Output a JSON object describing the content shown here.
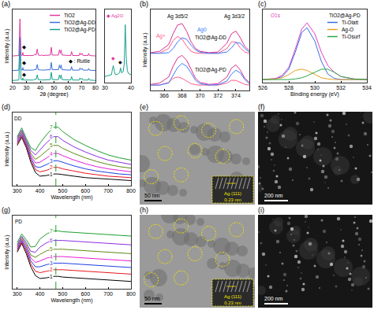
{
  "chart_data": [
    {
      "panel": "(a)",
      "type": "line",
      "x_label": "2θ (degree)",
      "y_label": "Intensity (a.u.)",
      "xlim": [
        20,
        80
      ],
      "xticks": [
        20,
        30,
        40,
        50,
        60,
        70,
        80
      ],
      "ylim": [
        0,
        170
      ],
      "tick_labels": "x",
      "legend": "top right",
      "x": [
        20,
        24.5,
        25.3,
        26.1,
        27,
        27.4,
        27.8,
        35,
        36,
        37,
        37.8,
        38.6,
        40.5,
        41,
        41.5,
        47.3,
        48,
        48.7,
        53.2,
        53.9,
        54.6,
        55.1,
        55.8,
        62,
        62.7,
        63.4,
        68.2,
        68.8,
        69.4,
        70.3,
        71,
        74.6,
        75.1,
        75.6,
        80
      ],
      "series": [
        {
          "name": "TiO2",
          "color": "#e0389e",
          "values": [
            62,
            63,
            148,
            64,
            63,
            70,
            63,
            63,
            66,
            64,
            78,
            64,
            63,
            65,
            63,
            64,
            82,
            64,
            64,
            76,
            68,
            76,
            64,
            63,
            72,
            63,
            63,
            69,
            64,
            68,
            63,
            63,
            68,
            63,
            62
          ]
        },
        {
          "name": "TiO2@Ag-DD",
          "color": "#3b6fd6",
          "values": [
            28,
            29,
            105,
            30,
            29,
            35,
            29,
            29,
            31,
            30,
            42,
            30,
            29,
            30,
            29,
            30,
            47,
            30,
            30,
            41,
            33,
            41,
            30,
            29,
            37,
            29,
            29,
            34,
            30,
            33,
            29,
            29,
            33,
            29,
            28
          ]
        },
        {
          "name": "TiO2@Ag-PD",
          "color": "#17a28e",
          "values": [
            5,
            6,
            72,
            7,
            6,
            11,
            6,
            6,
            8,
            7,
            18,
            7,
            6,
            7,
            6,
            7,
            24,
            7,
            7,
            18,
            10,
            18,
            7,
            6,
            14,
            6,
            6,
            11,
            7,
            10,
            6,
            6,
            10,
            6,
            5
          ]
        }
      ],
      "annotations": [
        {
          "text": "◆",
          "x": 28.2,
          "y": 84
        },
        {
          "text": "◆",
          "x": 28.2,
          "y": 47
        },
        {
          "text": "◆",
          "x": 28.2,
          "y": 20
        },
        {
          "text": "◆ : Rutile",
          "x": 68.5,
          "y": 50
        }
      ],
      "inset": {
        "type": "line",
        "xlim": [
          30,
          40
        ],
        "xticks": [
          30,
          40
        ],
        "ylim": [
          0,
          120
        ],
        "x": [
          30,
          31,
          32,
          32.5,
          32.8,
          33.2,
          33.6,
          34,
          35,
          35.6,
          36,
          36.4,
          37,
          37.4,
          37.8,
          38.2,
          38.6,
          39,
          40
        ],
        "series": [
          {
            "color": "#17a28e",
            "values": [
              10,
              11,
              12,
              13,
              20,
              28,
              19,
              13,
              14,
              16,
              24,
              16,
              18,
              30,
              95,
              40,
              20,
              15,
              13
            ]
          }
        ],
        "annotations": [
          {
            "text": "◆ Ag2O",
            "x": 34,
            "y": 110,
            "color": "#e0389e"
          },
          {
            "text": "◆",
            "x": 33.2,
            "y": 40,
            "color": "#e0389e"
          },
          {
            "text": "◆",
            "x": 36,
            "y": 34
          }
        ]
      }
    },
    {
      "panel": "(b)",
      "type": "line",
      "y_label": "Intensity (a.u.)",
      "xlim": [
        364.5,
        375.5
      ],
      "xticks": [
        366,
        368,
        370,
        372,
        374
      ],
      "ylim": [
        0,
        120
      ],
      "tick_labels": "x",
      "x": [
        364.5,
        365.5,
        366.5,
        367,
        367.5,
        368,
        368.5,
        369,
        369.5,
        370,
        371,
        372,
        373,
        373.5,
        374,
        374.5,
        375,
        375.5
      ],
      "series": [
        {
          "color": "#d8308f",
          "values": [
            56,
            58,
            68,
            84,
            97,
            99,
            88,
            72,
            62,
            58,
            56,
            57,
            70,
            84,
            88,
            78,
            65,
            59
          ]
        },
        {
          "color": "#ff5c8a",
          "values": [
            55,
            55.5,
            62,
            74,
            80,
            76,
            66,
            58,
            55.5,
            55,
            55,
            55,
            62,
            72,
            72,
            63,
            57,
            55
          ]
        },
        {
          "color": "#3a7bff",
          "values": [
            55,
            55,
            56,
            62,
            72,
            78,
            76,
            67,
            60,
            56.5,
            55,
            55,
            57,
            63,
            71,
            70,
            62,
            57
          ]
        },
        {
          "color": "#d8308f",
          "values": [
            9,
            11,
            20,
            36,
            48,
            52,
            45,
            32,
            18,
            12,
            9,
            10,
            20,
            33,
            38,
            30,
            18,
            12
          ]
        },
        {
          "color": "#ff5c8a",
          "values": [
            8,
            8,
            12,
            18,
            20,
            18,
            14,
            10,
            8.5,
            8,
            8,
            8,
            11,
            15,
            15,
            12,
            9,
            8
          ]
        },
        {
          "color": "#3a7bff",
          "values": [
            8,
            8,
            11,
            22,
            34,
            40,
            36,
            26,
            15,
            10,
            8,
            8.5,
            14,
            24,
            30,
            26,
            16,
            10
          ]
        }
      ],
      "annotations": [
        {
          "text": "Ag 3d5/2",
          "x": 367.5,
          "y": 110
        },
        {
          "text": "Ag 3d3/2",
          "x": 373.8,
          "y": 110
        },
        {
          "text": "Ag+",
          "x": 365.6,
          "y": 80,
          "color": "#ff5c8a"
        },
        {
          "text": "Ag0",
          "x": 370.2,
          "y": 90,
          "color": "#3a7bff"
        },
        {
          "text": "TiO2@Ag-DD",
          "x": 371.2,
          "y": 78
        },
        {
          "text": "TiO2@Ag-PD",
          "x": 371.2,
          "y": 30
        }
      ]
    },
    {
      "panel": "(c)",
      "type": "line",
      "x_label": "Binding energy (eV)",
      "xlim": [
        526,
        534
      ],
      "xticks": [
        526,
        528,
        530,
        532,
        534
      ],
      "ylim": [
        0,
        120
      ],
      "tick_labels": "x",
      "legend": "top right",
      "legend_title": "TiO2@Ag-PD",
      "x": [
        526,
        527,
        527.5,
        528,
        528.5,
        529,
        529.4,
        530,
        530.5,
        531,
        531.5,
        532,
        533,
        534
      ],
      "series": [
        {
          "color": "#e040c0",
          "values": [
            5,
            7,
            12,
            25,
            55,
            88,
            98,
            80,
            50,
            28,
            17,
            10,
            6,
            5
          ]
        },
        {
          "name": "Ti-Olatt",
          "color": "#3a6fe0",
          "values": [
            5,
            6,
            10,
            22,
            50,
            82,
            90,
            68,
            35,
            14,
            7,
            5,
            5,
            5
          ]
        },
        {
          "name": "Ag-O",
          "color": "#e8a020",
          "values": [
            5,
            6,
            8,
            13,
            20,
            22,
            20,
            13,
            8,
            6,
            5,
            5,
            5,
            5
          ]
        },
        {
          "name": "Ti-Osurf",
          "color": "#2aa84a",
          "values": [
            5,
            5,
            5,
            5,
            6,
            8,
            11,
            17,
            22,
            22,
            17,
            10,
            6,
            5
          ]
        }
      ],
      "annotations": [
        {
          "text": "O1s",
          "x": 527,
          "y": 110,
          "color": "#e040c0"
        }
      ]
    },
    {
      "panel": "(d)",
      "type": "line",
      "x_label": "Wavelength (nm)",
      "y_label": "Intensity (a.u.)",
      "xlim": [
        280,
        800
      ],
      "xticks": [
        300,
        400,
        500,
        600,
        700,
        800
      ],
      "ylim": [
        0,
        100
      ],
      "tick_labels": "x",
      "vline": 470,
      "x": [
        300,
        320,
        340,
        360,
        380,
        400,
        430,
        460,
        480,
        500,
        550,
        600,
        650,
        700,
        750,
        800
      ],
      "series": [
        {
          "name": "1",
          "color": "#000000",
          "values": [
            55,
            66,
            52,
            32,
            18,
            13,
            14,
            16,
            16,
            15,
            13,
            11,
            10,
            9,
            8,
            7
          ]
        },
        {
          "name": "2",
          "color": "#e8161e",
          "values": [
            57,
            68,
            54,
            35,
            22,
            19,
            21,
            25,
            25,
            23,
            20,
            17,
            15,
            13,
            12,
            11
          ]
        },
        {
          "name": "3",
          "color": "#1e3fe0",
          "values": [
            59,
            70,
            56,
            38,
            26,
            25,
            29,
            34,
            34,
            32,
            27,
            23,
            20,
            18,
            16,
            15
          ]
        },
        {
          "name": "4",
          "color": "#e61fd6",
          "values": [
            61,
            72,
            58,
            41,
            31,
            32,
            38,
            44,
            44,
            41,
            35,
            30,
            26,
            23,
            21,
            19
          ]
        },
        {
          "name": "5",
          "color": "#5d8a0e",
          "values": [
            63,
            74,
            60,
            44,
            36,
            40,
            48,
            55,
            55,
            51,
            44,
            38,
            33,
            29,
            26,
            24
          ]
        },
        {
          "name": "6",
          "color": "#8b2be2",
          "values": [
            65,
            76,
            62,
            48,
            42,
            49,
            59,
            67,
            67,
            62,
            53,
            46,
            40,
            35,
            32,
            29
          ]
        },
        {
          "name": "7",
          "color": "#1f9e2f",
          "values": [
            67,
            79,
            65,
            52,
            48,
            58,
            70,
            80,
            80,
            74,
            63,
            55,
            48,
            42,
            38,
            35
          ]
        }
      ],
      "annotations": [
        {
          "text": "DD",
          "x": 305,
          "y": 92
        }
      ]
    },
    {
      "panel": "(g)",
      "type": "line",
      "x_label": "Wavelength (nm)",
      "y_label": "Intensity (a.u.)",
      "xlim": [
        280,
        800
      ],
      "xticks": [
        300,
        400,
        500,
        600,
        700,
        800
      ],
      "ylim": [
        0,
        100
      ],
      "tick_labels": "x",
      "vline": 470,
      "x": [
        300,
        320,
        340,
        360,
        380,
        400,
        430,
        460,
        480,
        500,
        550,
        600,
        650,
        700,
        750,
        800
      ],
      "series": [
        {
          "name": "1",
          "color": "#000000",
          "values": [
            50,
            62,
            48,
            30,
            18,
            14,
            15,
            17,
            17,
            16,
            15,
            14,
            13,
            12,
            11,
            10
          ]
        },
        {
          "name": "2",
          "color": "#e8161e",
          "values": [
            52,
            64,
            51,
            34,
            24,
            22,
            24,
            26,
            26,
            26,
            25,
            24,
            23,
            22,
            21,
            20
          ]
        },
        {
          "name": "3",
          "color": "#1e3fe0",
          "values": [
            54,
            66,
            54,
            38,
            30,
            30,
            33,
            35,
            35,
            35,
            34,
            33,
            32,
            31,
            30,
            29
          ]
        },
        {
          "name": "4",
          "color": "#e61fd6",
          "values": [
            56,
            68,
            57,
            42,
            36,
            38,
            42,
            44,
            44,
            44,
            43,
            42,
            41,
            40,
            39,
            38
          ]
        },
        {
          "name": "5",
          "color": "#5d8a0e",
          "values": [
            58,
            70,
            60,
            46,
            43,
            47,
            52,
            54,
            54,
            54,
            53,
            52,
            51,
            50,
            49,
            48
          ]
        },
        {
          "name": "6",
          "color": "#8b2be2",
          "values": [
            60,
            72,
            63,
            51,
            50,
            57,
            63,
            66,
            66,
            66,
            65,
            64,
            63,
            62,
            61,
            60
          ]
        },
        {
          "name": "7",
          "color": "#1f9e2f",
          "values": [
            63,
            75,
            67,
            57,
            58,
            68,
            75,
            79,
            79,
            78,
            77,
            76,
            75,
            74,
            73,
            72
          ]
        }
      ],
      "annotations": [
        {
          "text": "PD",
          "x": 305,
          "y": 92
        }
      ]
    }
  ],
  "images": [
    {
      "panel": "(e)",
      "scale_bar": "50 nm",
      "inset_labels": [
        "Ag (111)",
        "0.23 nm"
      ]
    },
    {
      "panel": "(f)",
      "scale_bar": "200 nm"
    },
    {
      "panel": "(h)",
      "scale_bar": "50 nm",
      "inset_labels": [
        "Ag (111)",
        "0.23 nm"
      ]
    },
    {
      "panel": "(i)",
      "scale_bar": "200 nm"
    }
  ]
}
